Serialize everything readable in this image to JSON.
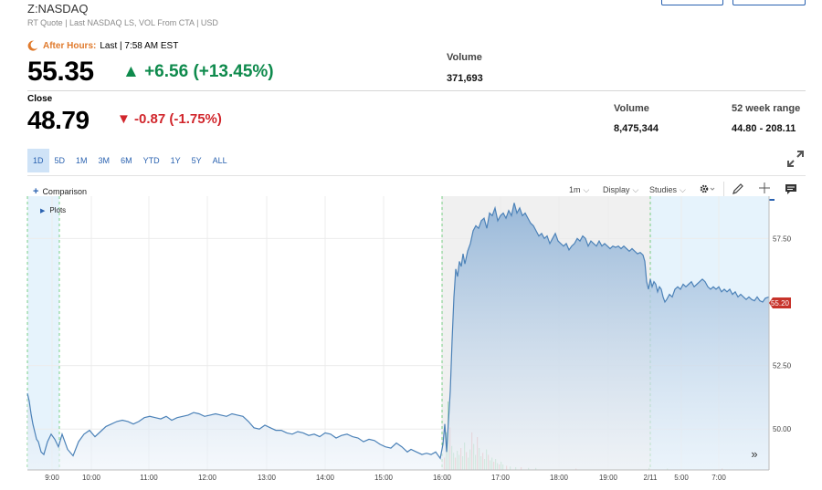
{
  "header": {
    "ticker": "Z:NASDAQ",
    "subline": "RT Quote | Last NASDAQ LS, VOL From CTA | USD"
  },
  "after_hours": {
    "label": "After Hours:",
    "last": "Last | 7:58 AM EST",
    "price": "55.35",
    "change": "▲ +6.56 (+13.45%)",
    "volume_label": "Volume",
    "volume": "371,693"
  },
  "close": {
    "label": "Close",
    "price": "48.79",
    "change": "▼ -0.87 (-1.75%)",
    "volume_label": "Volume",
    "volume": "8,475,344",
    "range_label": "52 week range",
    "range": "44.80 - 208.11"
  },
  "tabs": [
    "1D",
    "5D",
    "1M",
    "3M",
    "6M",
    "YTD",
    "1Y",
    "5Y",
    "ALL"
  ],
  "toolbar": {
    "comparison": "Comparison",
    "interval": "1m",
    "display": "Display",
    "studies": "Studies",
    "plots": "Plots"
  },
  "colors": {
    "up": "#0e8a4c",
    "down": "#d1262c",
    "line": "#4c82b8",
    "accent": "#2a62b0",
    "after_hours": "#e07a2c"
  },
  "chart_data": {
    "type": "area",
    "xlabels": [
      "9:00",
      "10:00",
      "11:00",
      "12:00",
      "13:00",
      "14:00",
      "15:00",
      "16:00",
      "17:00",
      "18:00",
      "19:00",
      "2/11",
      "5:00",
      "7:00"
    ],
    "ytick_labels": [
      "50.00",
      "52.50",
      "57.50"
    ],
    "ylim": [
      48.5,
      59.2
    ],
    "last_price_label": "55.20",
    "price_points": [
      [
        0,
        51.4
      ],
      [
        2,
        51.1
      ],
      [
        4,
        50.6
      ],
      [
        6,
        50.2
      ],
      [
        8,
        49.9
      ],
      [
        10,
        49.6
      ],
      [
        12,
        49.5
      ],
      [
        15,
        49.1
      ],
      [
        18,
        49.0
      ],
      [
        22,
        49.5
      ],
      [
        26,
        49.8
      ],
      [
        30,
        49.6
      ],
      [
        34,
        49.3
      ],
      [
        38,
        49.8
      ],
      [
        44,
        49.2
      ],
      [
        50,
        48.95
      ],
      [
        56,
        49.5
      ],
      [
        62,
        49.8
      ],
      [
        68,
        49.95
      ],
      [
        74,
        49.7
      ],
      [
        80,
        49.9
      ],
      [
        86,
        50.1
      ],
      [
        92,
        50.2
      ],
      [
        98,
        50.3
      ],
      [
        104,
        50.35
      ],
      [
        110,
        50.3
      ],
      [
        116,
        50.2
      ],
      [
        122,
        50.3
      ],
      [
        128,
        50.45
      ],
      [
        134,
        50.5
      ],
      [
        140,
        50.45
      ],
      [
        146,
        50.4
      ],
      [
        152,
        50.5
      ],
      [
        158,
        50.35
      ],
      [
        164,
        50.45
      ],
      [
        170,
        50.5
      ],
      [
        176,
        50.55
      ],
      [
        182,
        50.65
      ],
      [
        188,
        50.6
      ],
      [
        194,
        50.5
      ],
      [
        200,
        50.55
      ],
      [
        206,
        50.6
      ],
      [
        212,
        50.55
      ],
      [
        218,
        50.5
      ],
      [
        224,
        50.6
      ],
      [
        230,
        50.55
      ],
      [
        236,
        50.5
      ],
      [
        242,
        50.3
      ],
      [
        248,
        50.05
      ],
      [
        254,
        50.0
      ],
      [
        260,
        50.15
      ],
      [
        266,
        50.05
      ],
      [
        272,
        49.95
      ],
      [
        278,
        49.95
      ],
      [
        284,
        49.85
      ],
      [
        290,
        49.8
      ],
      [
        296,
        49.9
      ],
      [
        302,
        49.85
      ],
      [
        308,
        49.75
      ],
      [
        314,
        49.8
      ],
      [
        320,
        49.7
      ],
      [
        326,
        49.85
      ],
      [
        332,
        49.8
      ],
      [
        338,
        49.65
      ],
      [
        344,
        49.75
      ],
      [
        350,
        49.8
      ],
      [
        356,
        49.7
      ],
      [
        362,
        49.65
      ],
      [
        368,
        49.5
      ],
      [
        374,
        49.6
      ],
      [
        380,
        49.55
      ],
      [
        386,
        49.4
      ],
      [
        392,
        49.3
      ],
      [
        398,
        49.25
      ],
      [
        404,
        49.45
      ],
      [
        410,
        49.3
      ],
      [
        416,
        49.1
      ],
      [
        420,
        49.2
      ],
      [
        426,
        49.1
      ],
      [
        432,
        49.0
      ],
      [
        437,
        49.05
      ],
      [
        442,
        49.0
      ],
      [
        447,
        49.1
      ],
      [
        452,
        48.85
      ],
      [
        455,
        49.4
      ],
      [
        457,
        50.2
      ],
      [
        459,
        49.1
      ],
      [
        461,
        50.3
      ],
      [
        463,
        51.5
      ],
      [
        465,
        53.5
      ],
      [
        467,
        55.2
      ],
      [
        469,
        56.3
      ],
      [
        471,
        56.0
      ],
      [
        473,
        56.6
      ],
      [
        475,
        56.4
      ],
      [
        477,
        56.9
      ],
      [
        479,
        56.5
      ],
      [
        482,
        57.0
      ],
      [
        485,
        57.3
      ],
      [
        488,
        57.8
      ],
      [
        491,
        58.0
      ],
      [
        494,
        57.9
      ],
      [
        497,
        58.2
      ],
      [
        500,
        58.3
      ],
      [
        503,
        57.9
      ],
      [
        506,
        58.5
      ],
      [
        509,
        58.4
      ],
      [
        512,
        58.7
      ],
      [
        515,
        58.2
      ],
      [
        518,
        58.4
      ],
      [
        521,
        58.5
      ],
      [
        524,
        58.3
      ],
      [
        527,
        58.6
      ],
      [
        530,
        58.4
      ],
      [
        533,
        58.9
      ],
      [
        536,
        58.5
      ],
      [
        539,
        58.7
      ],
      [
        542,
        58.4
      ],
      [
        545,
        58.5
      ],
      [
        548,
        58.3
      ],
      [
        551,
        58.1
      ],
      [
        554,
        58.0
      ],
      [
        557,
        57.8
      ],
      [
        560,
        57.6
      ],
      [
        563,
        57.7
      ],
      [
        566,
        57.5
      ],
      [
        569,
        57.6
      ],
      [
        572,
        57.3
      ],
      [
        575,
        57.5
      ],
      [
        578,
        57.7
      ],
      [
        581,
        57.4
      ],
      [
        584,
        57.3
      ],
      [
        587,
        57.2
      ],
      [
        590,
        57.3
      ],
      [
        593,
        57.05
      ],
      [
        596,
        57.2
      ],
      [
        599,
        57.3
      ],
      [
        602,
        57.5
      ],
      [
        605,
        57.4
      ],
      [
        608,
        57.6
      ],
      [
        611,
        57.5
      ],
      [
        614,
        57.2
      ],
      [
        617,
        57.4
      ],
      [
        620,
        57.3
      ],
      [
        623,
        57.2
      ],
      [
        626,
        57.4
      ],
      [
        629,
        57.2
      ],
      [
        632,
        57.3
      ],
      [
        635,
        57.2
      ],
      [
        638,
        57.1
      ],
      [
        641,
        57.2
      ],
      [
        644,
        57.15
      ],
      [
        647,
        57.2
      ],
      [
        650,
        57.1
      ],
      [
        653,
        57.2
      ],
      [
        656,
        57.1
      ],
      [
        659,
        57.0
      ],
      [
        662,
        57.1
      ],
      [
        665,
        57.0
      ],
      [
        668,
        56.9
      ],
      [
        671,
        56.95
      ],
      [
        674,
        56.85
      ],
      [
        676,
        56.6
      ],
      [
        678,
        55.8
      ],
      [
        680,
        55.5
      ],
      [
        682,
        55.9
      ],
      [
        684,
        55.6
      ],
      [
        686,
        55.8
      ],
      [
        688,
        55.7
      ],
      [
        690,
        55.4
      ],
      [
        692,
        55.6
      ],
      [
        694,
        55.5
      ],
      [
        696,
        55.2
      ],
      [
        698,
        55.0
      ],
      [
        700,
        55.1
      ],
      [
        703,
        55.3
      ],
      [
        706,
        55.2
      ],
      [
        709,
        55.5
      ],
      [
        712,
        55.6
      ],
      [
        715,
        55.5
      ],
      [
        718,
        55.7
      ],
      [
        721,
        55.6
      ],
      [
        724,
        55.7
      ],
      [
        727,
        55.8
      ],
      [
        730,
        55.6
      ],
      [
        733,
        55.7
      ],
      [
        736,
        55.8
      ],
      [
        739,
        55.9
      ],
      [
        742,
        55.8
      ],
      [
        745,
        55.6
      ],
      [
        748,
        55.5
      ],
      [
        751,
        55.6
      ],
      [
        754,
        55.5
      ],
      [
        757,
        55.6
      ],
      [
        760,
        55.4
      ],
      [
        763,
        55.5
      ],
      [
        766,
        55.4
      ],
      [
        769,
        55.5
      ],
      [
        772,
        55.3
      ],
      [
        775,
        55.4
      ],
      [
        778,
        55.2
      ],
      [
        781,
        55.3
      ],
      [
        784,
        55.2
      ],
      [
        787,
        55.1
      ],
      [
        790,
        55.2
      ],
      [
        793,
        55.1
      ],
      [
        796,
        55.05
      ],
      [
        799,
        55.2
      ],
      [
        802,
        55.05
      ],
      [
        805,
        55.0
      ],
      [
        808,
        55.15
      ],
      [
        812,
        55.2
      ]
    ],
    "volume_points": [
      [
        456,
        0.18
      ],
      [
        458,
        0.55
      ],
      [
        460,
        1.0
      ],
      [
        462,
        0.62
      ],
      [
        464,
        0.35
      ],
      [
        466,
        0.25
      ],
      [
        468,
        0.18
      ],
      [
        470,
        0.28
      ],
      [
        472,
        0.22
      ],
      [
        474,
        0.32
      ],
      [
        476,
        0.2
      ],
      [
        478,
        0.4
      ],
      [
        480,
        0.26
      ],
      [
        482,
        0.18
      ],
      [
        484,
        0.3
      ],
      [
        486,
        0.55
      ],
      [
        488,
        0.38
      ],
      [
        490,
        0.22
      ],
      [
        492,
        0.48
      ],
      [
        494,
        0.32
      ],
      [
        496,
        0.2
      ],
      [
        498,
        0.25
      ],
      [
        500,
        0.16
      ],
      [
        502,
        0.3
      ],
      [
        504,
        0.22
      ],
      [
        506,
        0.14
      ],
      [
        508,
        0.18
      ],
      [
        510,
        0.12
      ],
      [
        512,
        0.16
      ],
      [
        514,
        0.1
      ],
      [
        516,
        0.08
      ],
      [
        518,
        0.12
      ],
      [
        520,
        0.08
      ],
      [
        524,
        0.06
      ],
      [
        528,
        0.05
      ],
      [
        534,
        0.04
      ],
      [
        540,
        0.04
      ],
      [
        548,
        0.03
      ],
      [
        556,
        0.03
      ],
      [
        600,
        0.02
      ],
      [
        680,
        0.03
      ],
      [
        700,
        0.02
      ],
      [
        760,
        0.02
      ]
    ]
  }
}
